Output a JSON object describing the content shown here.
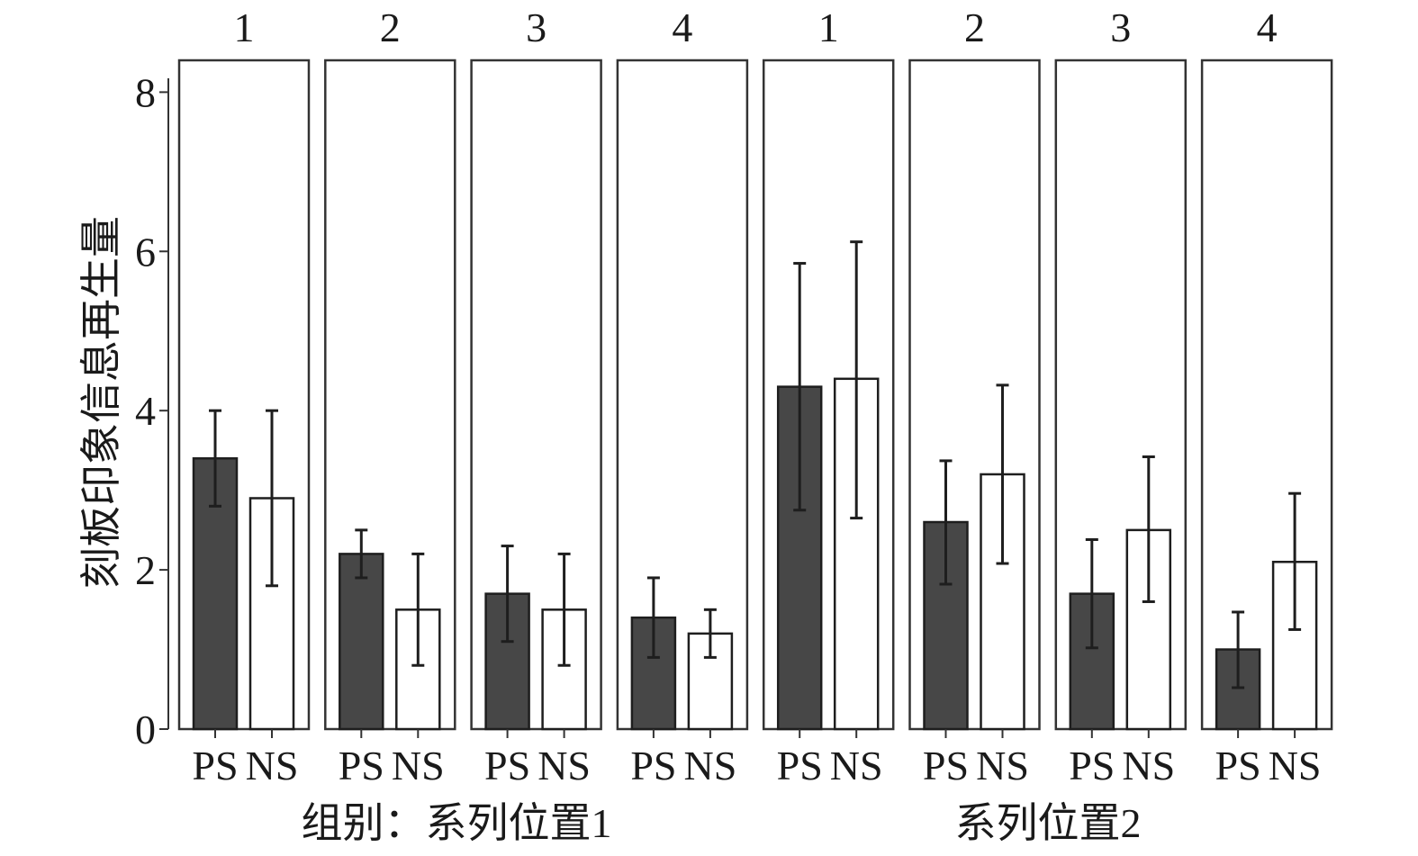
{
  "chart_data": {
    "type": "bar",
    "ylabel": "刻板印象信息再生量",
    "ylim": [
      0,
      8.4
    ],
    "yticks": [
      0,
      2,
      4,
      6,
      8
    ],
    "categories": [
      "PS",
      "NS"
    ],
    "group_labels": [
      "组别：系列位置1",
      "系列位置2"
    ],
    "colors": {
      "PS": "#474747",
      "NS": "#ffffff",
      "frame": "#333333"
    },
    "panels": [
      {
        "label": "1",
        "group": 0,
        "values": [
          3.4,
          2.9
        ],
        "err_low": [
          2.8,
          1.8
        ],
        "err_high": [
          4.0,
          4.0
        ]
      },
      {
        "label": "2",
        "group": 0,
        "values": [
          2.2,
          1.5
        ],
        "err_low": [
          1.9,
          0.8
        ],
        "err_high": [
          2.5,
          2.2
        ]
      },
      {
        "label": "3",
        "group": 0,
        "values": [
          1.7,
          1.5
        ],
        "err_low": [
          1.1,
          0.8
        ],
        "err_high": [
          2.3,
          2.2
        ]
      },
      {
        "label": "4",
        "group": 0,
        "values": [
          1.4,
          1.2
        ],
        "err_low": [
          0.9,
          0.9
        ],
        "err_high": [
          1.9,
          1.5
        ]
      },
      {
        "label": "1",
        "group": 1,
        "values": [
          4.3,
          4.4
        ],
        "err_low": [
          2.75,
          2.65
        ],
        "err_high": [
          5.85,
          6.12
        ]
      },
      {
        "label": "2",
        "group": 1,
        "values": [
          2.6,
          3.2
        ],
        "err_low": [
          1.82,
          2.08
        ],
        "err_high": [
          3.37,
          4.32
        ]
      },
      {
        "label": "3",
        "group": 1,
        "values": [
          1.7,
          2.5
        ],
        "err_low": [
          1.02,
          1.6
        ],
        "err_high": [
          2.38,
          3.42
        ]
      },
      {
        "label": "4",
        "group": 1,
        "values": [
          1.0,
          2.1
        ],
        "err_low": [
          0.52,
          1.25
        ],
        "err_high": [
          1.47,
          2.96
        ]
      }
    ]
  }
}
